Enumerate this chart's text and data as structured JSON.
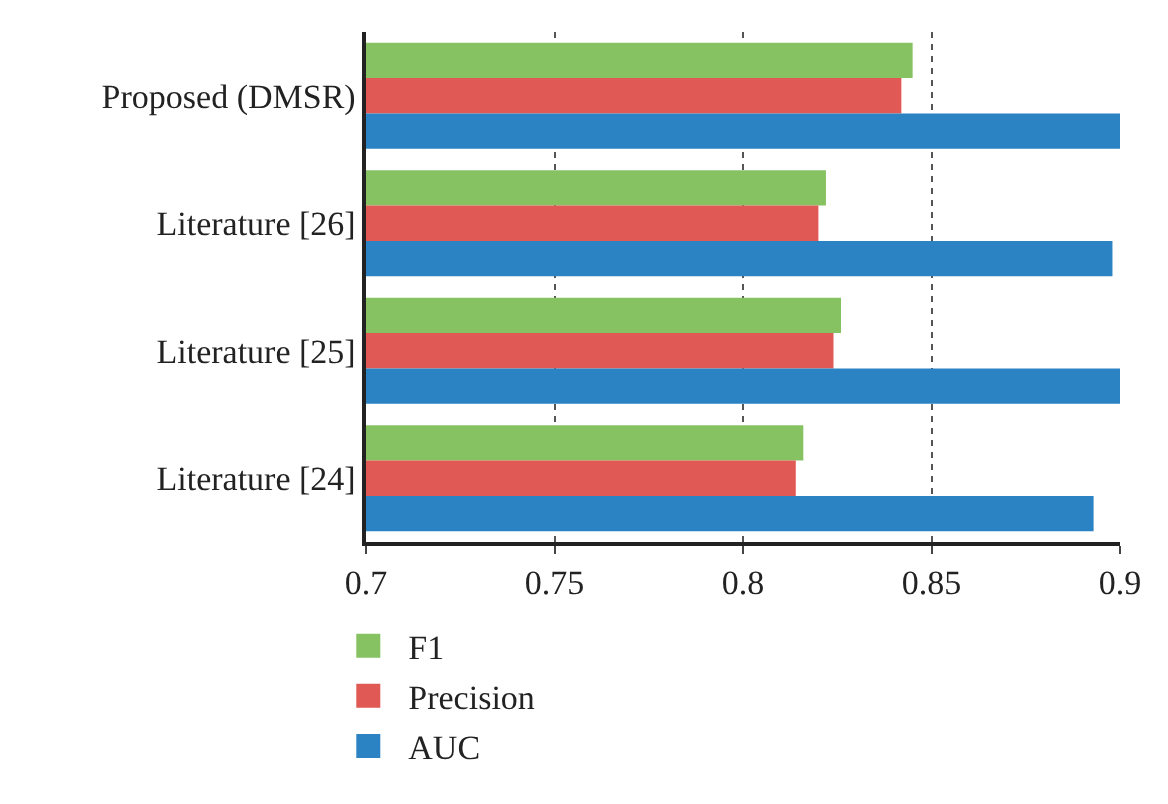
{
  "chart_data": {
    "type": "bar",
    "orientation": "horizontal",
    "categories": [
      "Proposed (DMSR)",
      "Literature [26]",
      "Literature [25]",
      "Literature [24]"
    ],
    "series": [
      {
        "name": "F1",
        "color": "#86c262",
        "values": [
          0.845,
          0.822,
          0.826,
          0.816
        ]
      },
      {
        "name": "Precision",
        "color": "#e05955",
        "values": [
          0.842,
          0.82,
          0.824,
          0.814
        ]
      },
      {
        "name": "AUC",
        "color": "#2b83c3",
        "values": [
          0.9,
          0.898,
          0.9,
          0.893
        ]
      }
    ],
    "xlim": [
      0.7,
      0.9
    ],
    "xticks": [
      0.7,
      0.75,
      0.8,
      0.85,
      0.9
    ],
    "grid": "x",
    "legend": "bottom"
  }
}
